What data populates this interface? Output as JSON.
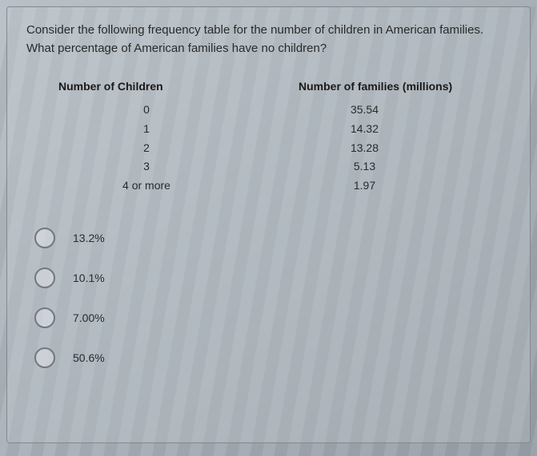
{
  "question": {
    "text": "Consider the following frequency table for the number of children in American families. What percentage of American families have no children?",
    "fontsize": 15,
    "color": "#2a2a2a"
  },
  "table": {
    "type": "table",
    "headers": {
      "left": "Number of Children",
      "right": "Number of families (millions)"
    },
    "header_fontsize": 14,
    "header_fontweight": "bold",
    "cell_fontsize": 14,
    "cell_color": "#2a2a2a",
    "rows": [
      {
        "children": "0",
        "families": "35.54"
      },
      {
        "children": "1",
        "families": "14.32"
      },
      {
        "children": "2",
        "families": "13.28"
      },
      {
        "children": "3",
        "families": "5.13"
      },
      {
        "children": "4 or more",
        "families": "1.97"
      }
    ]
  },
  "options": {
    "type": "radio-group",
    "radio_border_color": "#707880",
    "radio_size": 26,
    "label_fontsize": 14,
    "items": [
      {
        "label": "13.2%"
      },
      {
        "label": "10.1%"
      },
      {
        "label": "7.00%"
      },
      {
        "label": "50.6%"
      }
    ]
  },
  "background_color": "#b0b8c0"
}
